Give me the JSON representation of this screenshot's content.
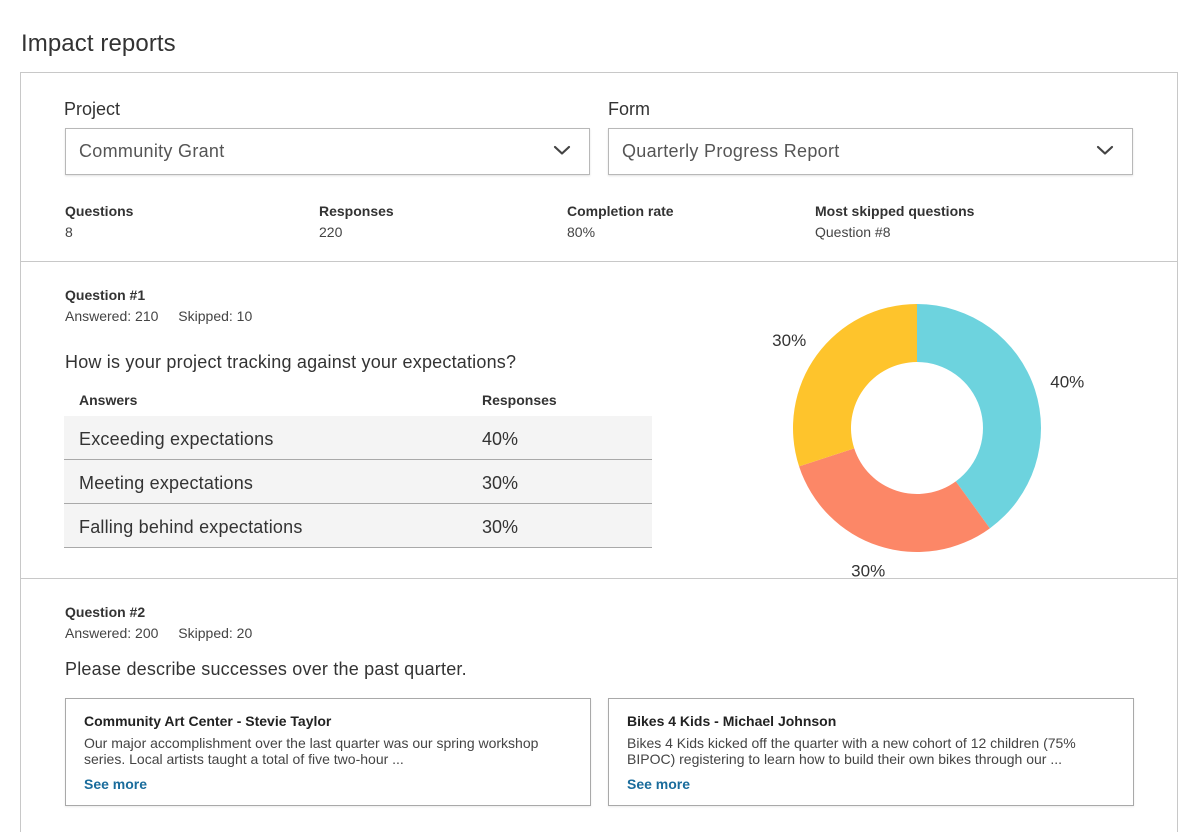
{
  "page": {
    "title": "Impact reports"
  },
  "filters": {
    "project": {
      "label": "Project",
      "value": "Community Grant"
    },
    "form": {
      "label": "Form",
      "value": "Quarterly Progress Report"
    }
  },
  "stats": [
    {
      "label": "Questions",
      "value": "8"
    },
    {
      "label": "Responses",
      "value": "220"
    },
    {
      "label": "Completion rate",
      "value": "80%"
    },
    {
      "label": "Most skipped questions",
      "value": "Question #8"
    }
  ],
  "question1": {
    "title": "Question #1",
    "answered": "Answered: 210",
    "skipped": "Skipped: 10",
    "text": "How is your project tracking against your expectations?",
    "columns": {
      "answers": "Answers",
      "responses": "Responses"
    },
    "rows": [
      {
        "answer": "Exceeding expectations",
        "response": "40%"
      },
      {
        "answer": "Meeting expectations",
        "response": "30%"
      },
      {
        "answer": "Falling behind expectations",
        "response": "30%"
      }
    ]
  },
  "chart_data": {
    "type": "pie",
    "donut": true,
    "categories": [
      "Exceeding expectations",
      "Meeting expectations",
      "Falling behind expectations"
    ],
    "values": [
      40,
      30,
      30
    ],
    "labels": [
      "40%",
      "30%",
      "30%"
    ],
    "colors": [
      "#6dd3de",
      "#fc8767",
      "#fec42c"
    ]
  },
  "question2": {
    "title": "Question #2",
    "answered": "Answered: 200",
    "skipped": "Skipped: 20",
    "text": "Please describe successes over the past quarter.",
    "cards": [
      {
        "title": "Community Art Center - Stevie Taylor",
        "body": "Our major accomplishment over the last quarter was our spring workshop series. Local artists taught a total of five two-hour ...",
        "link": "See more"
      },
      {
        "title": "Bikes 4 Kids - Michael Johnson",
        "body": "Bikes 4 Kids kicked off the quarter with a new cohort of 12 children (75% BIPOC) registering to learn how to build their own bikes through our ...",
        "link": "See more"
      }
    ]
  },
  "icons": {
    "dropdown": "chevron-down-icon"
  }
}
